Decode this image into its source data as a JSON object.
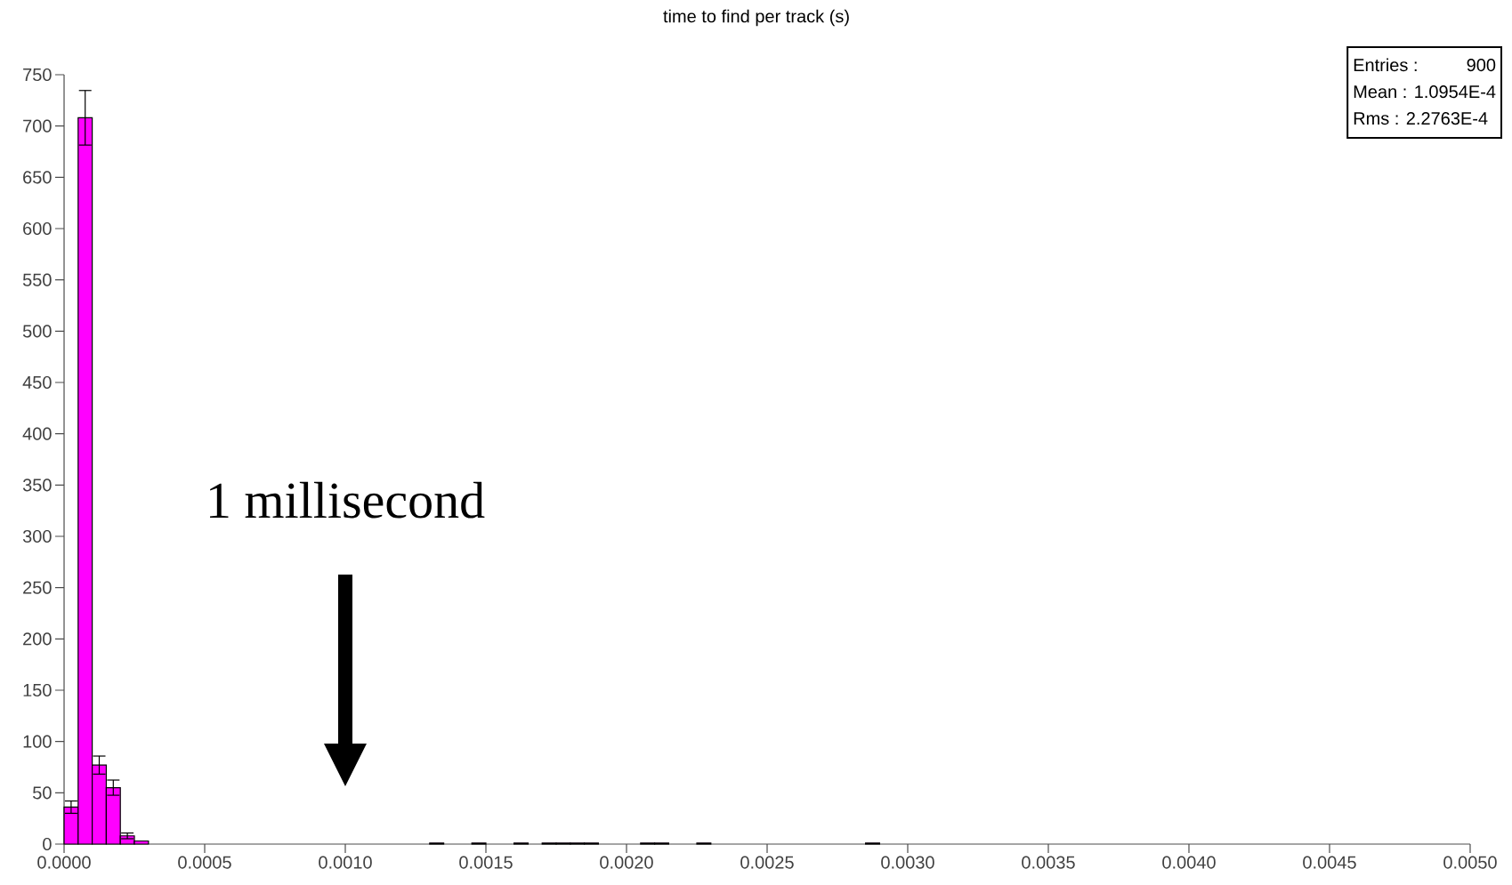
{
  "chart_data": {
    "type": "histogram",
    "title": "time to find per track (s)",
    "color": "#ff00ff",
    "bins": [
      0,
      5e-05,
      0.0001,
      0.00015,
      0.0002,
      0.00025,
      0.0003,
      0.00035,
      0.0004,
      0.00045,
      0.0005,
      0.00055,
      0.0006,
      0.00065,
      0.0007,
      0.00075,
      0.0008,
      0.00085,
      0.0009,
      0.00095,
      0.001,
      0.00105,
      0.0011,
      0.00115,
      0.0012,
      0.00125,
      0.0013,
      0.00135,
      0.0014,
      0.00145,
      0.0015,
      0.00155,
      0.0016,
      0.00165,
      0.0017,
      0.00175,
      0.0018,
      0.00185,
      0.0019,
      0.00195,
      0.002,
      0.00205,
      0.0021,
      0.00215,
      0.0022,
      0.00225,
      0.0023,
      0.00235,
      0.0024,
      0.00245,
      0.0025,
      0.00255,
      0.0026,
      0.00265,
      0.0027,
      0.00275,
      0.0028,
      0.00285,
      0.0029,
      0.00295,
      0.003,
      0.00305,
      0.0031,
      0.00315,
      0.0032,
      0.00325,
      0.0033,
      0.00335,
      0.0034,
      0.00345,
      0.0035,
      0.00355,
      0.0036,
      0.00365,
      0.0037,
      0.00375,
      0.0038,
      0.00385,
      0.0039,
      0.00395,
      0.004,
      0.00405,
      0.0041,
      0.00415,
      0.0042,
      0.00425,
      0.0043,
      0.00435,
      0.0044,
      0.00445,
      0.0045,
      0.00455,
      0.0046,
      0.00465,
      0.0047,
      0.00475,
      0.0048,
      0.00485,
      0.0049,
      0.00495,
      0.005
    ],
    "values": [
      36,
      708,
      77,
      55,
      8,
      3,
      0,
      0,
      0,
      0,
      0,
      0,
      0,
      0,
      0,
      0,
      0,
      0,
      0,
      0,
      0,
      0,
      0,
      0,
      0,
      0,
      1,
      0,
      0,
      1,
      0,
      0,
      1,
      0,
      1,
      1,
      1,
      1,
      0,
      0,
      0,
      1,
      1,
      0,
      0,
      1,
      0,
      0,
      0,
      0,
      0,
      0,
      0,
      0,
      0,
      0,
      0,
      1,
      0,
      0,
      0,
      0,
      0,
      0,
      0,
      0,
      0,
      0,
      0,
      0,
      0,
      0,
      0,
      0,
      0,
      0,
      0,
      0,
      0,
      0,
      0,
      0,
      0,
      0,
      0,
      0,
      0,
      0,
      0,
      0,
      0,
      0,
      0,
      0,
      0,
      0,
      0,
      0,
      0,
      0
    ],
    "errors": [
      6,
      26.6,
      8.8,
      7.4,
      2.8,
      null,
      null,
      null,
      null,
      null,
      null,
      null,
      null,
      null,
      null,
      null,
      null,
      null,
      null,
      null,
      null,
      null,
      null,
      null,
      null,
      null,
      null,
      null,
      null,
      null,
      null,
      null,
      null,
      null,
      null,
      null,
      null,
      null,
      null,
      null,
      null,
      null,
      null,
      null,
      null,
      null,
      null,
      null,
      null,
      null,
      null,
      null,
      null,
      null,
      null,
      null,
      null,
      null,
      null,
      null,
      null,
      null,
      null,
      null,
      null,
      null,
      null,
      null,
      null,
      null,
      null,
      null,
      null,
      null,
      null,
      null,
      null,
      null,
      null,
      null,
      null,
      null,
      null,
      null,
      null,
      null,
      null,
      null,
      null,
      null,
      null,
      null,
      null,
      null,
      null,
      null,
      null,
      null,
      null,
      null
    ],
    "xlim": [
      0,
      0.005
    ],
    "ylim": [
      0,
      750
    ],
    "xticks": [
      {
        "value": 0,
        "label": "0.0000"
      },
      {
        "value": 0.0005,
        "label": "0.0005"
      },
      {
        "value": 0.001,
        "label": "0.0010"
      },
      {
        "value": 0.0015,
        "label": "0.0015"
      },
      {
        "value": 0.002,
        "label": "0.0020"
      },
      {
        "value": 0.0025,
        "label": "0.0025"
      },
      {
        "value": 0.003,
        "label": "0.0030"
      },
      {
        "value": 0.0035,
        "label": "0.0035"
      },
      {
        "value": 0.004,
        "label": "0.0040"
      },
      {
        "value": 0.0045,
        "label": "0.0045"
      },
      {
        "value": 0.005,
        "label": "0.0050"
      }
    ],
    "yticks": [
      0,
      50,
      100,
      150,
      200,
      250,
      300,
      350,
      400,
      450,
      500,
      550,
      600,
      650,
      700,
      750
    ],
    "annotations": [
      "1 millisecond",
      "Entries :",
      "900",
      "Mean : 1.0954E-4",
      "Rms :  2.2763E-4"
    ]
  }
}
